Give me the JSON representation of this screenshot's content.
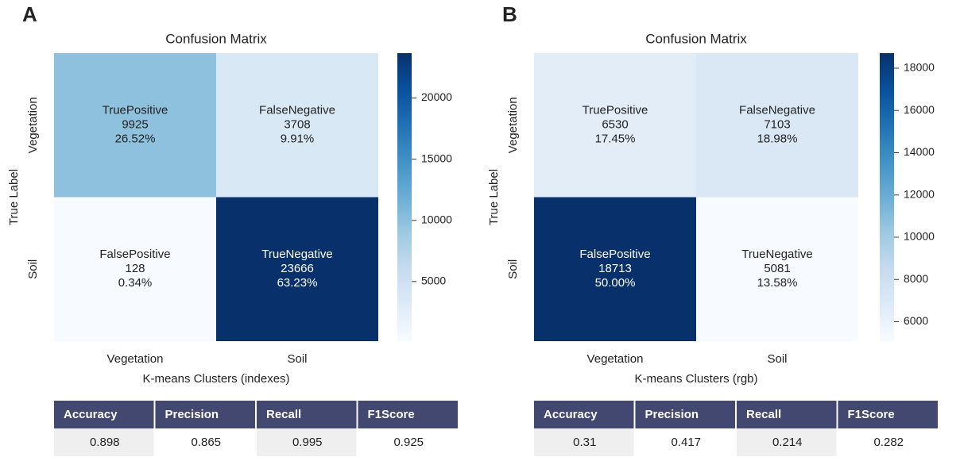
{
  "chart_data": [
    {
      "type": "heatmap",
      "panel_label": "A",
      "title": "Confusion Matrix",
      "x_label": "K-means Clusters (indexes)",
      "y_label": "True Label",
      "x_categories": [
        "Vegetation",
        "Soil"
      ],
      "y_categories": [
        "Vegetation",
        "Soil"
      ],
      "values": [
        [
          9925,
          3708
        ],
        [
          128,
          23666
        ]
      ],
      "cell_names": [
        [
          "TruePositive",
          "FalseNegative"
        ],
        [
          "FalsePositive",
          "TrueNegative"
        ]
      ],
      "percentages": [
        [
          26.52,
          9.91
        ],
        [
          0.34,
          63.23
        ]
      ],
      "percentage_labels": [
        [
          "26.52%",
          "9.91%"
        ],
        [
          "0.34%",
          "63.23%"
        ]
      ],
      "colormap": "Blues",
      "clim": [
        128,
        23666
      ],
      "cticks": [
        5000,
        10000,
        15000,
        20000
      ],
      "table": {
        "columns": [
          "Accuracy",
          "Precision",
          "Recall",
          "F1Score"
        ],
        "rows": [
          [
            0.898,
            0.865,
            0.995,
            0.925
          ]
        ]
      }
    },
    {
      "type": "heatmap",
      "panel_label": "B",
      "title": "Confusion Matrix",
      "x_label": "K-means Clusters (rgb)",
      "y_label": "True Label",
      "x_categories": [
        "Vegetation",
        "Soil"
      ],
      "y_categories": [
        "Vegetation",
        "Soil"
      ],
      "values": [
        [
          6530,
          7103
        ],
        [
          18713,
          5081
        ]
      ],
      "cell_names": [
        [
          "TruePositive",
          "FalseNegative"
        ],
        [
          "FalsePositive",
          "TrueNegative"
        ]
      ],
      "percentages": [
        [
          17.45,
          18.98
        ],
        [
          50.0,
          13.58
        ]
      ],
      "percentage_labels": [
        [
          "17.45%",
          "18.98%"
        ],
        [
          "50.00%",
          "13.58%"
        ]
      ],
      "colormap": "Blues",
      "clim": [
        5081,
        18713
      ],
      "cticks": [
        6000,
        8000,
        10000,
        12000,
        14000,
        16000,
        18000
      ],
      "table": {
        "columns": [
          "Accuracy",
          "Precision",
          "Recall",
          "F1Score"
        ],
        "rows": [
          [
            0.31,
            0.417,
            0.214,
            0.282
          ]
        ]
      }
    }
  ]
}
